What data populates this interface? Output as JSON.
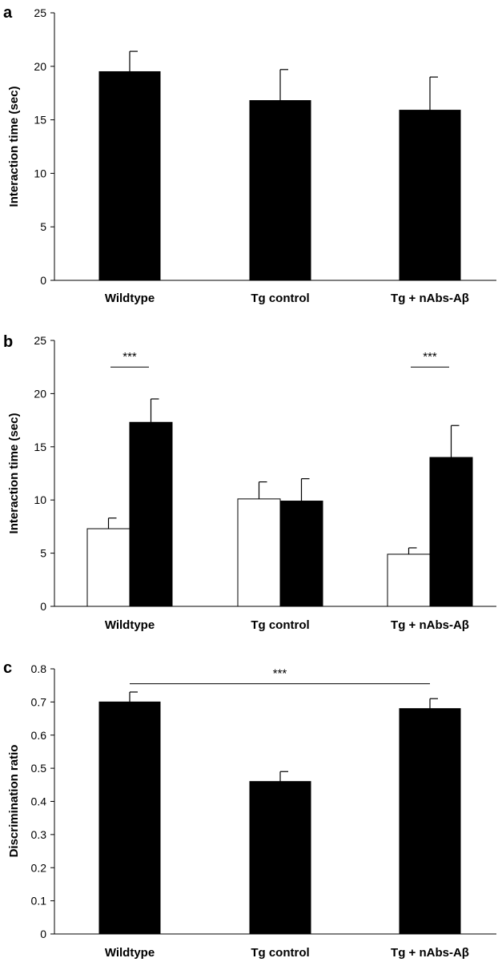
{
  "chart_data": [
    {
      "panel": "a",
      "type": "bar",
      "ylabel": "Interaction time (sec)",
      "ylim": [
        0,
        25
      ],
      "yticks": [
        0,
        5,
        10,
        15,
        20,
        25
      ],
      "categories": [
        "Wildtype",
        "Tg control",
        "Tg + nAbs-Aβ"
      ],
      "series": [
        {
          "color": "#000000",
          "values": [
            19.5,
            16.8,
            15.9
          ],
          "errors": [
            1.9,
            2.9,
            3.1
          ]
        }
      ],
      "significance": []
    },
    {
      "panel": "b",
      "type": "bar",
      "ylabel": "Interaction time (sec)",
      "ylim": [
        0,
        25
      ],
      "yticks": [
        0,
        5,
        10,
        15,
        20,
        25
      ],
      "categories": [
        "Wildtype",
        "Tg control",
        "Tg + nAbs-Aβ"
      ],
      "series": [
        {
          "color": "#ffffff",
          "values": [
            7.3,
            10.1,
            4.9
          ],
          "errors": [
            1.0,
            1.6,
            0.6
          ]
        },
        {
          "color": "#000000",
          "values": [
            17.3,
            9.9,
            14.0
          ],
          "errors": [
            2.2,
            2.1,
            3.0
          ]
        }
      ],
      "significance": [
        {
          "label": "***",
          "category": 0,
          "y": 22.5
        },
        {
          "label": "***",
          "category": 2,
          "y": 22.5
        }
      ]
    },
    {
      "panel": "c",
      "type": "bar",
      "ylabel": "Discrimination ratio",
      "ylim": [
        0,
        0.8
      ],
      "yticks": [
        0,
        0.1,
        0.2,
        0.3,
        0.4,
        0.5,
        0.6,
        0.7,
        0.8
      ],
      "categories": [
        "Wildtype",
        "Tg control",
        "Tg + nAbs-Aβ"
      ],
      "series": [
        {
          "color": "#000000",
          "values": [
            0.7,
            0.46,
            0.68
          ],
          "errors": [
            0.03,
            0.03,
            0.03
          ]
        }
      ],
      "significance": [
        {
          "label": "***",
          "from": 0,
          "to": 2,
          "y": 0.755
        }
      ]
    }
  ]
}
